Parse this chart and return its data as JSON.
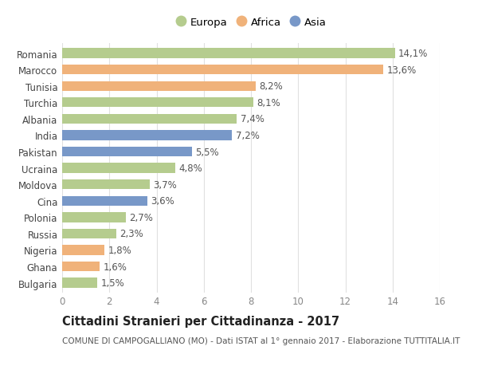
{
  "categories": [
    "Romania",
    "Marocco",
    "Tunisia",
    "Turchia",
    "Albania",
    "India",
    "Pakistan",
    "Ucraina",
    "Moldova",
    "Cina",
    "Polonia",
    "Russia",
    "Nigeria",
    "Ghana",
    "Bulgaria"
  ],
  "values": [
    14.1,
    13.6,
    8.2,
    8.1,
    7.4,
    7.2,
    5.5,
    4.8,
    3.7,
    3.6,
    2.7,
    2.3,
    1.8,
    1.6,
    1.5
  ],
  "labels": [
    "14,1%",
    "13,6%",
    "8,2%",
    "8,1%",
    "7,4%",
    "7,2%",
    "5,5%",
    "4,8%",
    "3,7%",
    "3,6%",
    "2,7%",
    "2,3%",
    "1,8%",
    "1,6%",
    "1,5%"
  ],
  "colors": [
    "#b5cc8e",
    "#f0b27a",
    "#f0b27a",
    "#b5cc8e",
    "#b5cc8e",
    "#7898c8",
    "#7898c8",
    "#b5cc8e",
    "#b5cc8e",
    "#7898c8",
    "#b5cc8e",
    "#b5cc8e",
    "#f0b27a",
    "#f0b27a",
    "#b5cc8e"
  ],
  "legend_labels": [
    "Europa",
    "Africa",
    "Asia"
  ],
  "legend_colors": [
    "#b5cc8e",
    "#f0b27a",
    "#7898c8"
  ],
  "title": "Cittadini Stranieri per Cittadinanza - 2017",
  "subtitle": "COMUNE DI CAMPOGALLIANO (MO) - Dati ISTAT al 1° gennaio 2017 - Elaborazione TUTTITALIA.IT",
  "xlim": [
    0,
    16
  ],
  "xticks": [
    0,
    2,
    4,
    6,
    8,
    10,
    12,
    14,
    16
  ],
  "background_color": "#ffffff",
  "grid_color": "#e0e0e0",
  "bar_height": 0.6,
  "label_fontsize": 8.5,
  "tick_fontsize": 8.5,
  "title_fontsize": 10.5,
  "subtitle_fontsize": 7.5
}
